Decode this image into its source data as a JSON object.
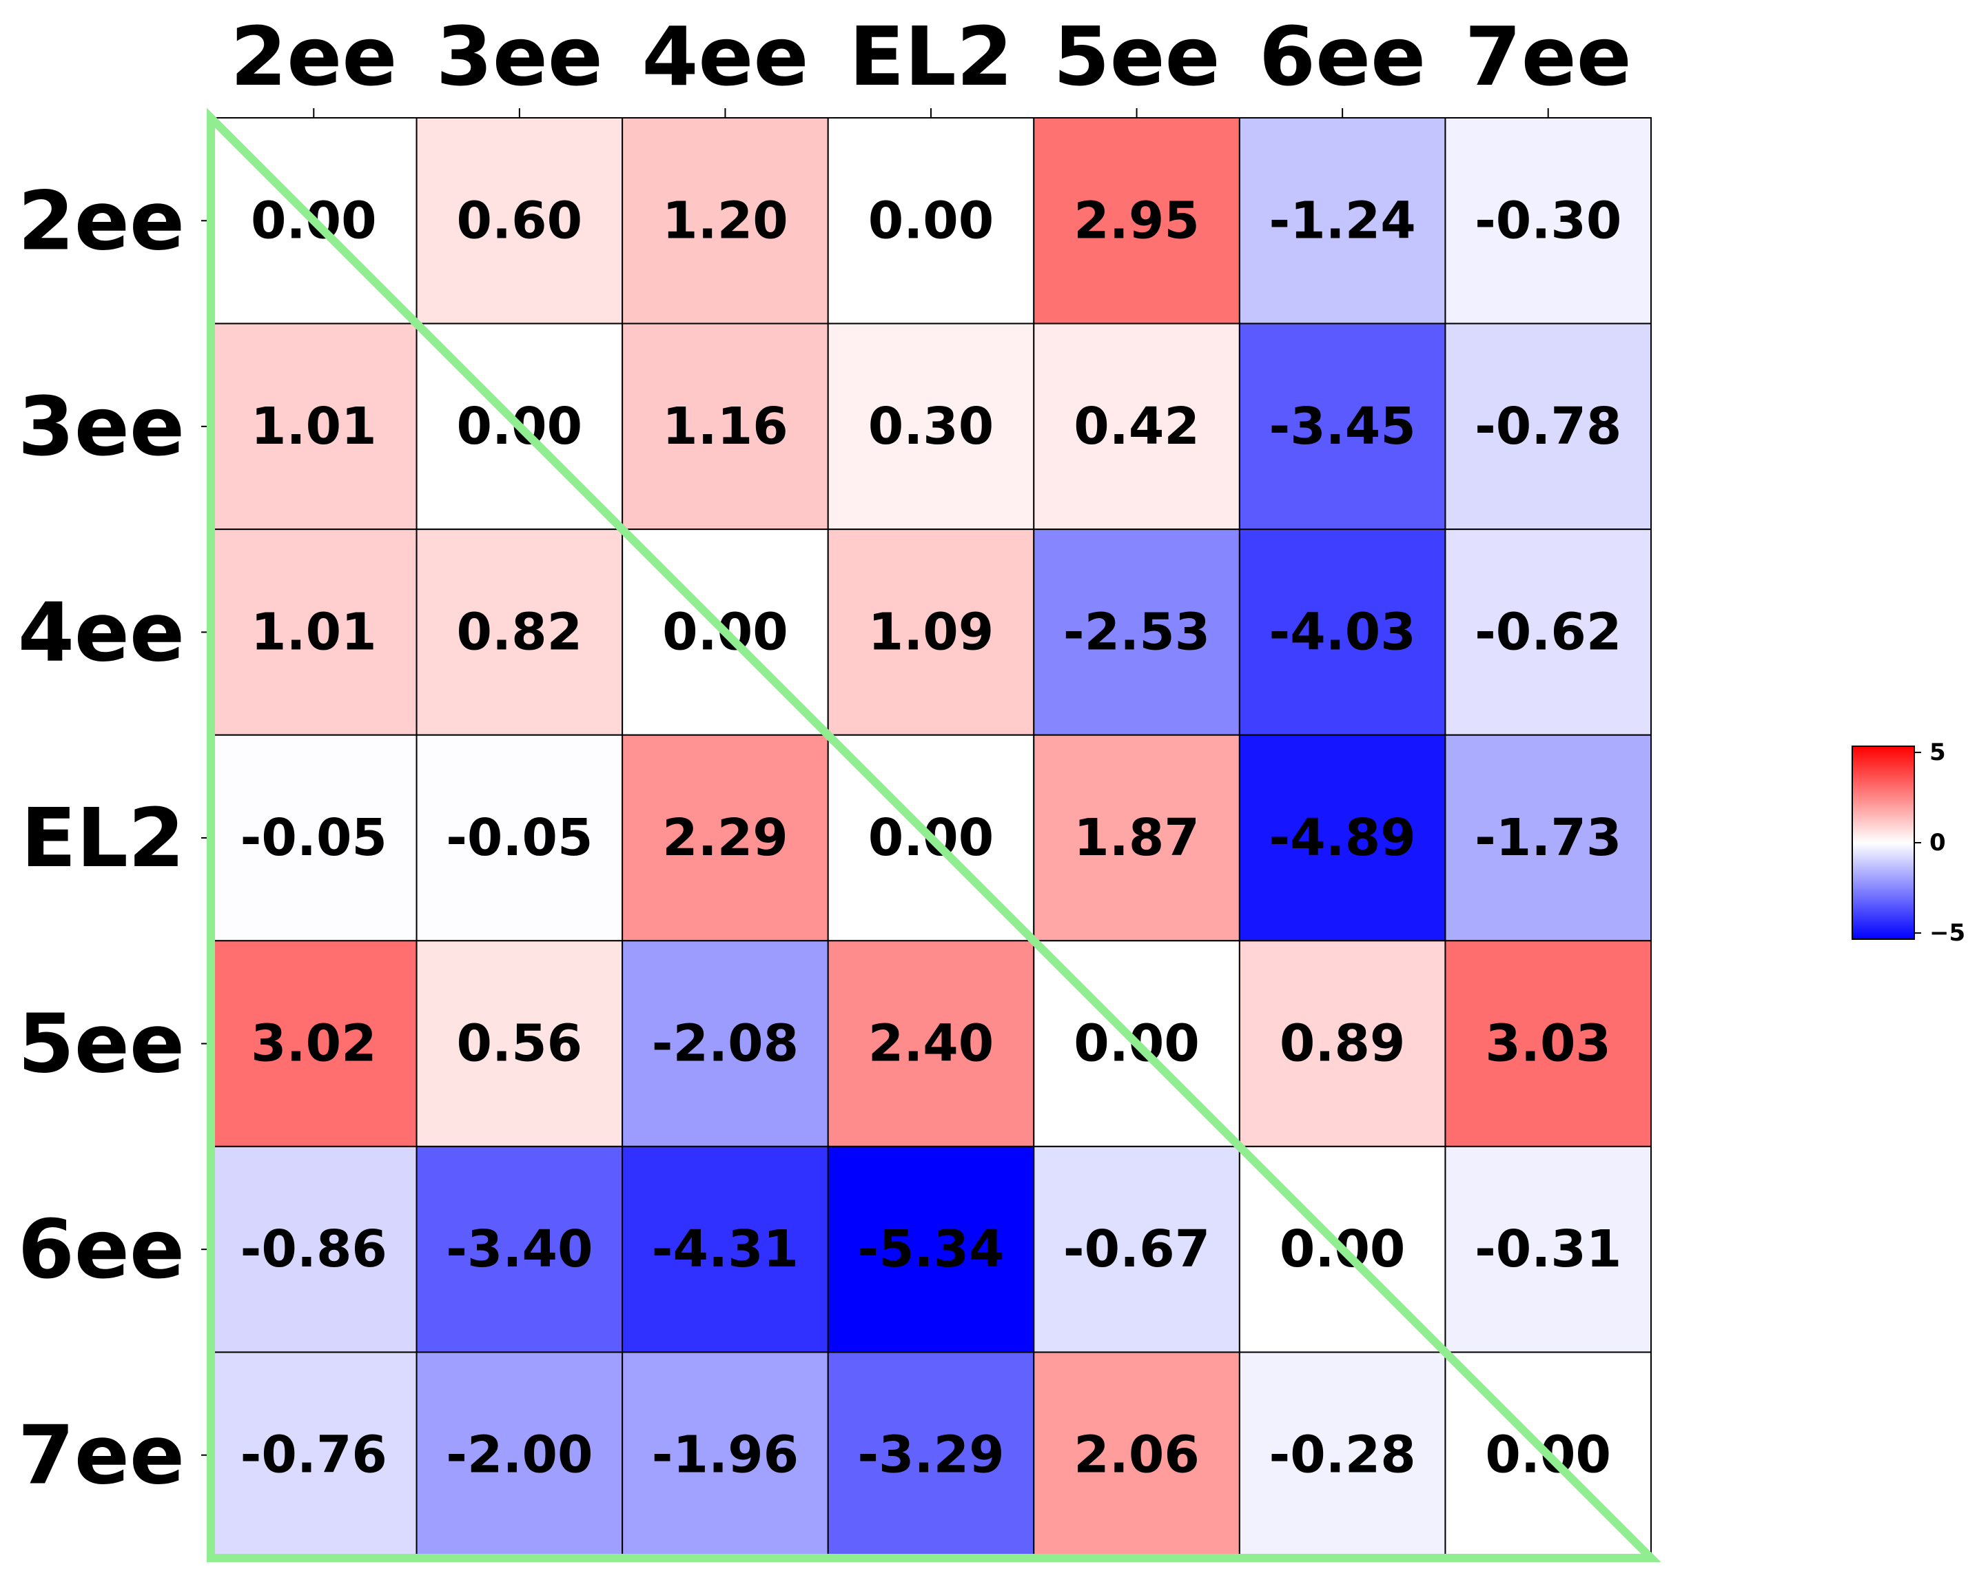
{
  "chart_data": {
    "type": "heatmap",
    "title": "",
    "xlabel": "",
    "ylabel": "",
    "x_categories": [
      "2ee",
      "3ee",
      "4ee",
      "EL2",
      "5ee",
      "6ee",
      "7ee"
    ],
    "y_categories": [
      "2ee",
      "3ee",
      "4ee",
      "EL2",
      "5ee",
      "6ee",
      "7ee"
    ],
    "x_tick_position": "top",
    "values": [
      [
        0.0,
        0.6,
        1.2,
        0.0,
        2.95,
        -1.24,
        -0.3
      ],
      [
        1.01,
        0.0,
        1.16,
        0.3,
        0.42,
        -3.45,
        -0.78
      ],
      [
        1.01,
        0.82,
        0.0,
        1.09,
        -2.53,
        -4.03,
        -0.62
      ],
      [
        -0.05,
        -0.05,
        2.29,
        0.0,
        1.87,
        -4.89,
        -1.73
      ],
      [
        3.02,
        0.56,
        -2.08,
        2.4,
        0.0,
        0.89,
        3.03
      ],
      [
        -0.86,
        -3.4,
        -4.31,
        -5.34,
        -0.67,
        0.0,
        -0.31
      ],
      [
        -0.76,
        -2.0,
        -1.96,
        -3.29,
        2.06,
        -0.28,
        0.0
      ]
    ],
    "value_format": "2 decimals",
    "colormap": "bwr",
    "vmin": -5.34,
    "vmax": 5.34,
    "colorbar": {
      "ticks": [
        5,
        0,
        -5
      ],
      "tick_labels": [
        "5",
        "0",
        "−5"
      ],
      "placement": "right"
    },
    "overlay": {
      "shape": "lower-left triangle outline",
      "color": "#90ee90"
    },
    "grid": true,
    "colors": {
      "low": "#0000ff",
      "mid": "#ffffff",
      "high": "#ff0000",
      "text": "#000000"
    }
  }
}
